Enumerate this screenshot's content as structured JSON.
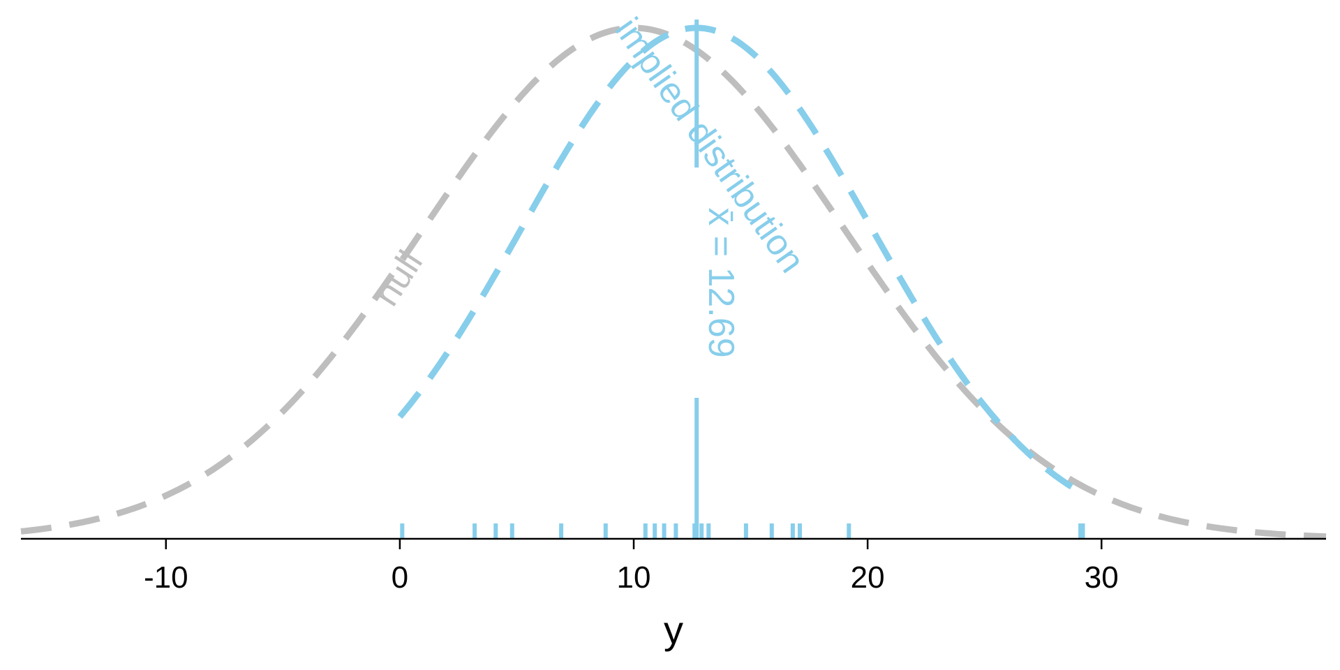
{
  "chart_data": {
    "type": "line",
    "title": "",
    "xlabel": "y",
    "ylabel": "",
    "xlim": [
      -16.2,
      39.6
    ],
    "ylim": [
      0,
      1
    ],
    "x_ticks": [
      -10,
      0,
      10,
      20,
      30
    ],
    "x_tick_labels": [
      "-10",
      "0",
      "10",
      "20",
      "30"
    ],
    "grid": false,
    "legend": "none",
    "series": [
      {
        "name": "null",
        "kind": "density",
        "mean": 10.0,
        "sd": 9.0,
        "peak": 0.98,
        "range": [
          -16.2,
          39.6
        ],
        "color": "#bebebe",
        "dash": "dashed"
      },
      {
        "name": "implied distribution",
        "kind": "density",
        "mean": 12.69,
        "sd": 7.5,
        "peak": 0.98,
        "range": [
          0.0,
          29.2
        ],
        "color": "#87ceeb",
        "dash": "dashed"
      }
    ],
    "mean_line": {
      "x": 12.69,
      "label": "x̄ = 12.69",
      "color": "#87ceeb"
    },
    "rug": {
      "values": [
        0.1,
        3.2,
        4.1,
        4.8,
        6.9,
        8.8,
        10.5,
        10.9,
        11.3,
        11.8,
        12.6,
        12.9,
        13.2,
        14.8,
        15.9,
        16.8,
        17.1,
        19.2,
        29.1,
        29.2
      ],
      "color": "#87ceeb"
    }
  }
}
